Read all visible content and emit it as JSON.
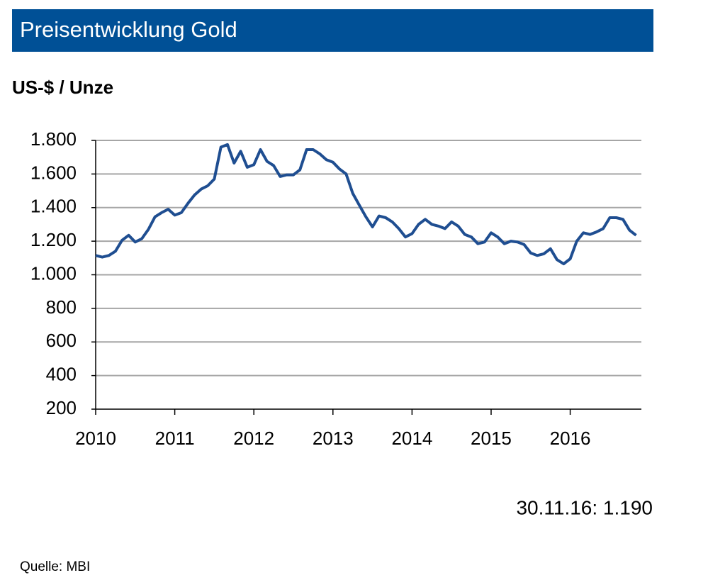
{
  "chart_data": {
    "type": "line",
    "title": "Preisentwicklung Gold",
    "y_label": "US-$ / Unze",
    "annotation": "30.11.16:  1.190",
    "source": "Quelle:  MBI",
    "x": [
      2010,
      2010.083,
      2010.167,
      2010.25,
      2010.333,
      2010.417,
      2010.5,
      2010.583,
      2010.667,
      2010.75,
      2010.833,
      2010.917,
      2011,
      2011.083,
      2011.167,
      2011.25,
      2011.333,
      2011.417,
      2011.5,
      2011.583,
      2011.667,
      2011.75,
      2011.833,
      2011.917,
      2012,
      2012.083,
      2012.167,
      2012.25,
      2012.333,
      2012.417,
      2012.5,
      2012.583,
      2012.667,
      2012.75,
      2012.833,
      2012.917,
      2013,
      2013.083,
      2013.167,
      2013.25,
      2013.333,
      2013.417,
      2013.5,
      2013.583,
      2013.667,
      2013.75,
      2013.833,
      2013.917,
      2014,
      2014.083,
      2014.167,
      2014.25,
      2014.333,
      2014.417,
      2014.5,
      2014.583,
      2014.667,
      2014.75,
      2014.833,
      2014.917,
      2015,
      2015.083,
      2015.167,
      2015.25,
      2015.333,
      2015.417,
      2015.5,
      2015.583,
      2015.667,
      2015.75,
      2015.833,
      2015.917,
      2016,
      2016.083,
      2016.167,
      2016.25,
      2016.333,
      2016.417,
      2016.5,
      2016.583,
      2016.667,
      2016.75,
      2016.833
    ],
    "series": [
      {
        "color": "#1f4e91",
        "values": [
          1115,
          1105,
          1115,
          1140,
          1205,
          1235,
          1195,
          1215,
          1270,
          1345,
          1370,
          1390,
          1355,
          1370,
          1425,
          1475,
          1510,
          1530,
          1570,
          1760,
          1775,
          1665,
          1735,
          1640,
          1655,
          1745,
          1675,
          1650,
          1585,
          1595,
          1595,
          1625,
          1745,
          1745,
          1720,
          1685,
          1670,
          1630,
          1600,
          1485,
          1415,
          1345,
          1285,
          1350,
          1340,
          1315,
          1275,
          1225,
          1245,
          1300,
          1330,
          1300,
          1290,
          1275,
          1315,
          1290,
          1240,
          1225,
          1185,
          1195,
          1250,
          1225,
          1185,
          1200,
          1195,
          1180,
          1130,
          1115,
          1125,
          1155,
          1090,
          1065,
          1095,
          1200,
          1250,
          1240,
          1255,
          1275,
          1340,
          1340,
          1330,
          1265,
          1235
        ]
      }
    ],
    "xlim": [
      2010,
      2016.9
    ],
    "xticks": [
      2010,
      2011,
      2012,
      2013,
      2014,
      2015,
      2016
    ],
    "ylim": [
      200,
      1800
    ],
    "yticks": [
      200,
      400,
      600,
      800,
      {
        "value": 1000,
        "label": "1.000"
      },
      {
        "value": 1200,
        "label": "1.200"
      },
      {
        "value": 1400,
        "label": "1.400"
      },
      {
        "value": 1600,
        "label": "1.600"
      },
      {
        "value": 1800,
        "label": "1.800"
      }
    ],
    "grid": true
  }
}
